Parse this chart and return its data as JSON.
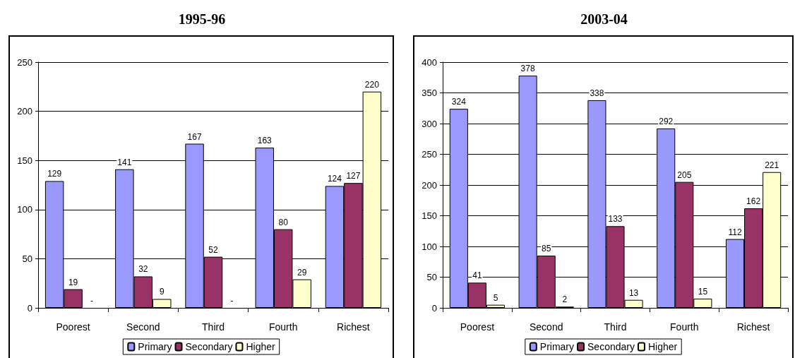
{
  "chart_data": [
    {
      "type": "bar",
      "title": "1995-96",
      "categories": [
        "Poorest",
        "Second",
        "Third",
        "Fourth",
        "Richest"
      ],
      "series": [
        {
          "name": "Primary",
          "color": "#9999ff",
          "values": [
            129,
            141,
            167,
            163,
            124
          ]
        },
        {
          "name": "Secondary",
          "color": "#993366",
          "values": [
            19,
            32,
            52,
            80,
            127
          ]
        },
        {
          "name": "Higher",
          "color": "#ffffcc",
          "values": [
            null,
            9,
            null,
            29,
            220
          ],
          "value_labels": [
            "-",
            "9",
            "-",
            "29",
            "220"
          ]
        }
      ],
      "ylim": [
        0,
        250
      ],
      "yticks": [
        0,
        50,
        100,
        150,
        200,
        250
      ],
      "grid": "y",
      "legend": "bottom",
      "data_labels": true
    },
    {
      "type": "bar",
      "title": "2003-04",
      "categories": [
        "Poorest",
        "Second",
        "Third",
        "Fourth",
        "Richest"
      ],
      "series": [
        {
          "name": "Primary",
          "color": "#9999ff",
          "values": [
            324,
            378,
            338,
            292,
            112
          ]
        },
        {
          "name": "Secondary",
          "color": "#993366",
          "values": [
            41,
            85,
            133,
            205,
            162
          ]
        },
        {
          "name": "Higher",
          "color": "#ffffcc",
          "values": [
            5,
            2,
            13,
            15,
            221
          ]
        }
      ],
      "ylim": [
        0,
        400
      ],
      "yticks": [
        0,
        50,
        100,
        150,
        200,
        250,
        300,
        350,
        400
      ],
      "grid": "y",
      "legend": "bottom",
      "data_labels": true
    }
  ]
}
